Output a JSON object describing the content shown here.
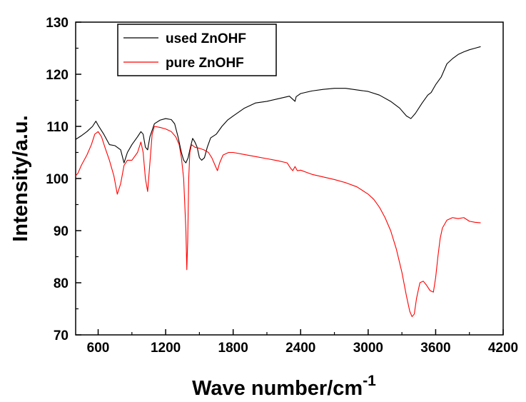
{
  "chart_data": {
    "type": "line",
    "xlabel": "Wave number/cm",
    "xlabel_superscript": "-1",
    "ylabel": "Intensity/a.u.",
    "xlim": [
      400,
      4200
    ],
    "ylim": [
      70,
      130
    ],
    "x_ticks": [
      600,
      1200,
      1800,
      2400,
      3000,
      3600,
      4200
    ],
    "y_ticks": [
      70,
      80,
      90,
      100,
      110,
      120,
      130
    ],
    "grid": false,
    "legend": "top-left",
    "series": [
      {
        "name": "used ZnOHF",
        "color": "#000000",
        "points": [
          [
            400,
            107.5
          ],
          [
            450,
            108.2
          ],
          [
            500,
            109
          ],
          [
            550,
            110
          ],
          [
            580,
            111
          ],
          [
            600,
            110.2
          ],
          [
            650,
            108.5
          ],
          [
            700,
            106.5
          ],
          [
            750,
            106.3
          ],
          [
            800,
            105.5
          ],
          [
            830,
            103
          ],
          [
            860,
            105
          ],
          [
            900,
            106.5
          ],
          [
            950,
            108
          ],
          [
            980,
            109
          ],
          [
            1000,
            108.5
          ],
          [
            1020,
            106
          ],
          [
            1040,
            105.5
          ],
          [
            1060,
            108
          ],
          [
            1100,
            110.5
          ],
          [
            1150,
            111.2
          ],
          [
            1200,
            111.5
          ],
          [
            1250,
            111.3
          ],
          [
            1280,
            110.5
          ],
          [
            1310,
            108
          ],
          [
            1340,
            105
          ],
          [
            1360,
            103.5
          ],
          [
            1380,
            103
          ],
          [
            1400,
            104
          ],
          [
            1420,
            106
          ],
          [
            1440,
            107.7
          ],
          [
            1460,
            107
          ],
          [
            1480,
            106
          ],
          [
            1500,
            104
          ],
          [
            1520,
            103.5
          ],
          [
            1545,
            104
          ],
          [
            1570,
            106
          ],
          [
            1600,
            107.8
          ],
          [
            1650,
            108.5
          ],
          [
            1700,
            110
          ],
          [
            1750,
            111.2
          ],
          [
            1800,
            112
          ],
          [
            1900,
            113.5
          ],
          [
            2000,
            114.5
          ],
          [
            2100,
            114.8
          ],
          [
            2200,
            115.3
          ],
          [
            2300,
            115.8
          ],
          [
            2330,
            115.2
          ],
          [
            2350,
            114.8
          ],
          [
            2360,
            115.7
          ],
          [
            2380,
            116
          ],
          [
            2400,
            116.3
          ],
          [
            2500,
            116.8
          ],
          [
            2600,
            117.1
          ],
          [
            2700,
            117.3
          ],
          [
            2800,
            117.3
          ],
          [
            2900,
            117
          ],
          [
            3000,
            116.7
          ],
          [
            3100,
            116
          ],
          [
            3200,
            114.8
          ],
          [
            3280,
            113.5
          ],
          [
            3340,
            112
          ],
          [
            3380,
            111.5
          ],
          [
            3420,
            112.5
          ],
          [
            3480,
            114.5
          ],
          [
            3530,
            116
          ],
          [
            3560,
            116.5
          ],
          [
            3600,
            118
          ],
          [
            3650,
            119.5
          ],
          [
            3700,
            122
          ],
          [
            3750,
            123
          ],
          [
            3800,
            123.8
          ],
          [
            3850,
            124.3
          ],
          [
            3900,
            124.7
          ],
          [
            3950,
            125
          ],
          [
            4000,
            125.3
          ]
        ]
      },
      {
        "name": "pure ZnOHF",
        "color": "#ff0000",
        "points": [
          [
            400,
            100.5
          ],
          [
            420,
            101
          ],
          [
            450,
            102.5
          ],
          [
            500,
            104.5
          ],
          [
            540,
            106.5
          ],
          [
            570,
            108.5
          ],
          [
            600,
            109
          ],
          [
            630,
            108
          ],
          [
            660,
            106
          ],
          [
            700,
            103.5
          ],
          [
            740,
            100.5
          ],
          [
            770,
            97
          ],
          [
            800,
            99
          ],
          [
            830,
            102.5
          ],
          [
            860,
            103.5
          ],
          [
            900,
            103.5
          ],
          [
            950,
            105
          ],
          [
            980,
            107
          ],
          [
            1000,
            105
          ],
          [
            1020,
            100
          ],
          [
            1040,
            97.5
          ],
          [
            1060,
            103
          ],
          [
            1080,
            108.5
          ],
          [
            1100,
            110
          ],
          [
            1150,
            109.8
          ],
          [
            1200,
            109.5
          ],
          [
            1250,
            109
          ],
          [
            1290,
            108
          ],
          [
            1320,
            106.5
          ],
          [
            1340,
            104
          ],
          [
            1360,
            100
          ],
          [
            1370,
            95
          ],
          [
            1380,
            90
          ],
          [
            1388,
            82.5
          ],
          [
            1396,
            88
          ],
          [
            1405,
            100
          ],
          [
            1415,
            105
          ],
          [
            1430,
            106.5
          ],
          [
            1460,
            106
          ],
          [
            1500,
            105.8
          ],
          [
            1540,
            105.5
          ],
          [
            1580,
            105
          ],
          [
            1610,
            104
          ],
          [
            1640,
            102.5
          ],
          [
            1660,
            101.5
          ],
          [
            1680,
            103
          ],
          [
            1710,
            104.5
          ],
          [
            1760,
            105
          ],
          [
            1800,
            105
          ],
          [
            1900,
            104.6
          ],
          [
            2000,
            104.2
          ],
          [
            2100,
            103.8
          ],
          [
            2200,
            103.4
          ],
          [
            2280,
            103
          ],
          [
            2310,
            102
          ],
          [
            2330,
            101.5
          ],
          [
            2350,
            102.3
          ],
          [
            2370,
            101.5
          ],
          [
            2400,
            101.6
          ],
          [
            2450,
            101.2
          ],
          [
            2500,
            100.8
          ],
          [
            2600,
            100.3
          ],
          [
            2700,
            99.8
          ],
          [
            2800,
            99.2
          ],
          [
            2900,
            98.4
          ],
          [
            3000,
            97
          ],
          [
            3050,
            96
          ],
          [
            3100,
            94.5
          ],
          [
            3150,
            92.5
          ],
          [
            3200,
            90
          ],
          [
            3250,
            86.5
          ],
          [
            3300,
            82
          ],
          [
            3340,
            77.5
          ],
          [
            3370,
            74.5
          ],
          [
            3390,
            73.5
          ],
          [
            3410,
            74
          ],
          [
            3430,
            77
          ],
          [
            3460,
            80
          ],
          [
            3490,
            80.3
          ],
          [
            3520,
            79.5
          ],
          [
            3550,
            78.5
          ],
          [
            3580,
            78.2
          ],
          [
            3600,
            81
          ],
          [
            3620,
            85
          ],
          [
            3640,
            88.5
          ],
          [
            3660,
            90.5
          ],
          [
            3700,
            92
          ],
          [
            3750,
            92.5
          ],
          [
            3800,
            92.3
          ],
          [
            3850,
            92.5
          ],
          [
            3900,
            91.8
          ],
          [
            3950,
            91.6
          ],
          [
            4000,
            91.5
          ]
        ]
      }
    ]
  }
}
